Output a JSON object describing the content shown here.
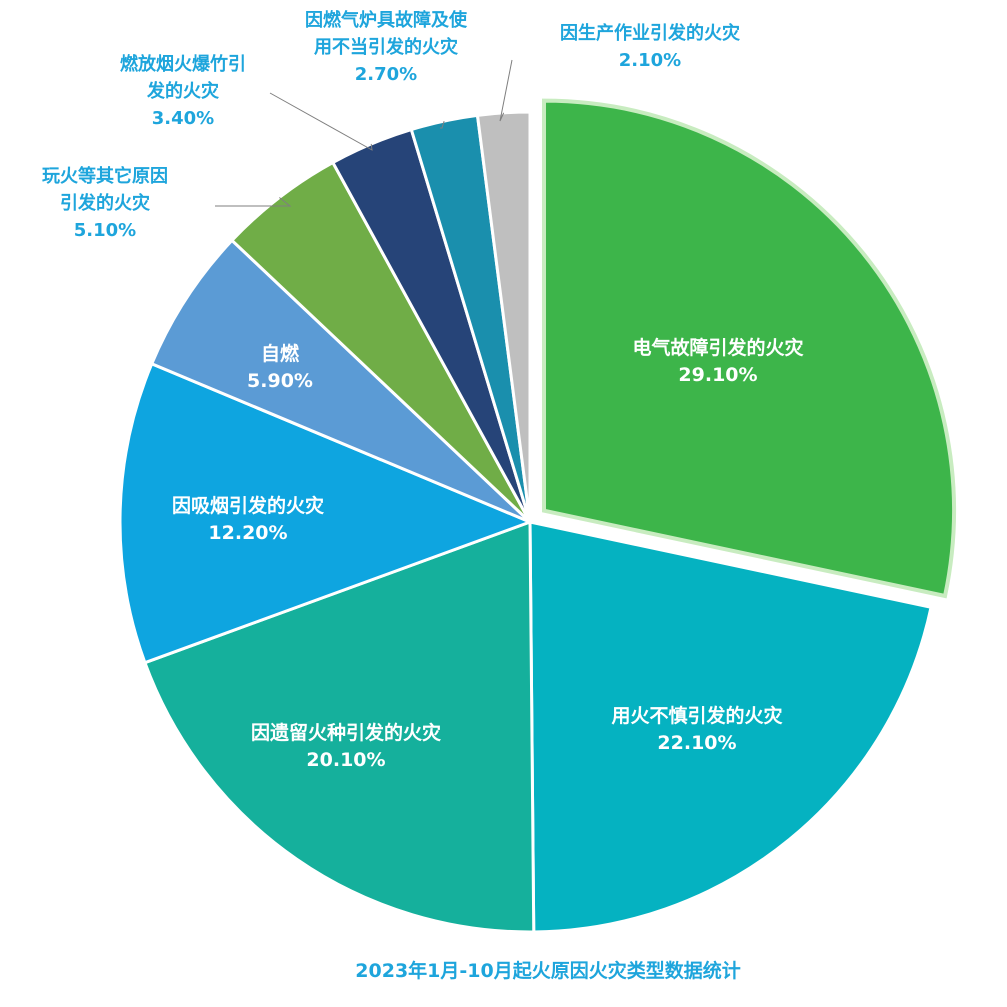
{
  "chart_data": {
    "type": "pie",
    "title": "2023年1月-10月起火原因火灾类型数据统计",
    "slices": [
      {
        "label": "电气故障引发的火灾",
        "value_label": "29.10%",
        "value": 29.1,
        "color": "#3db54a"
      },
      {
        "label": "用火不慎引发的火灾",
        "value_label": "22.10%",
        "value": 22.1,
        "color": "#05b2c1"
      },
      {
        "label": "因遗留火种引发的火灾",
        "value_label": "20.10%",
        "value": 20.1,
        "color": "#15b09c"
      },
      {
        "label": "因吸烟引发的火灾",
        "value_label": "12.20%",
        "value": 12.2,
        "color": "#0ea5e0"
      },
      {
        "label": "自燃",
        "value_label": "5.90%",
        "value": 5.9,
        "color": "#5b9bd5"
      },
      {
        "label": "玩火等其它原因引发的火灾",
        "value_label": "5.10%",
        "value": 5.1,
        "color": "#70ad47"
      },
      {
        "label": "燃放烟火爆竹引发的火灾",
        "value_label": "3.40%",
        "value": 3.4,
        "color": "#264478"
      },
      {
        "label": "因燃气炉具故障及使用不当引发的火灾",
        "value_label": "2.70%",
        "value": 2.7,
        "color": "#1a8fad"
      },
      {
        "label": "因生产作业引发的火灾",
        "value_label": "2.10%",
        "value": 2.1,
        "color": "#bfbfbf"
      }
    ]
  }
}
